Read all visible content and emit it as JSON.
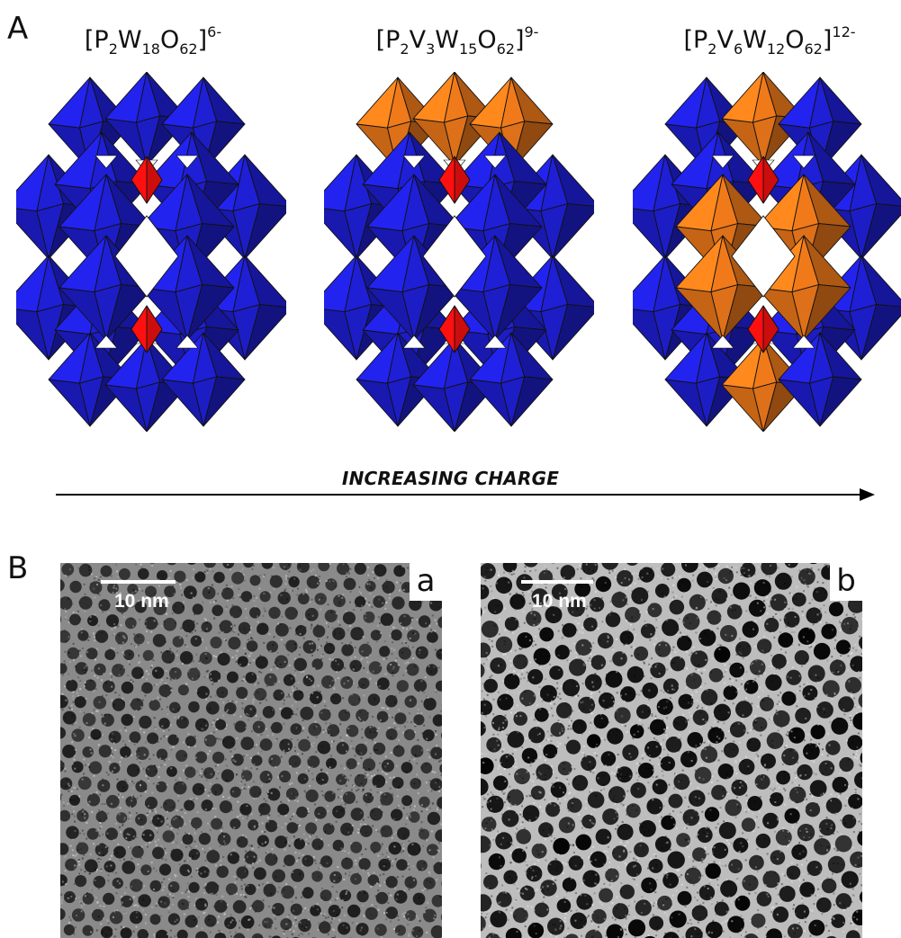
{
  "panels": {
    "a_letter": "A",
    "b_letter": "B"
  },
  "formulas": [
    {
      "prefix": "[P",
      "parts": [
        [
          "sub",
          "2"
        ],
        [
          "txt",
          "W"
        ],
        [
          "sub",
          "18"
        ],
        [
          "txt",
          "O"
        ],
        [
          "sub",
          "62"
        ],
        [
          "txt",
          "]"
        ],
        [
          "sup",
          "6-"
        ]
      ]
    },
    {
      "prefix": "[P",
      "parts": [
        [
          "sub",
          "2"
        ],
        [
          "txt",
          "V"
        ],
        [
          "sub",
          "3"
        ],
        [
          "txt",
          "W"
        ],
        [
          "sub",
          "15"
        ],
        [
          "txt",
          "O"
        ],
        [
          "sub",
          "62"
        ],
        [
          "txt",
          "]"
        ],
        [
          "sup",
          "9-"
        ]
      ]
    },
    {
      "prefix": "[P",
      "parts": [
        [
          "sub",
          "2"
        ],
        [
          "txt",
          "V"
        ],
        [
          "sub",
          "6"
        ],
        [
          "txt",
          "W"
        ],
        [
          "sub",
          "12"
        ],
        [
          "txt",
          "O"
        ],
        [
          "sub",
          "62"
        ],
        [
          "txt",
          "]"
        ],
        [
          "sup",
          "12-"
        ]
      ]
    }
  ],
  "arrow_label": "INCREASING CHARGE",
  "tem_images": [
    {
      "letter": "a",
      "scale_label": "10 nm"
    },
    {
      "letter": "b",
      "scale_label": "10 nm"
    }
  ],
  "colors": {
    "tungsten_octahedra": "#1f1fd6",
    "vanadium_octahedra": "#f07a1a",
    "phosphate_tetrahedra": "#ff1010",
    "arrow": "#000000"
  }
}
